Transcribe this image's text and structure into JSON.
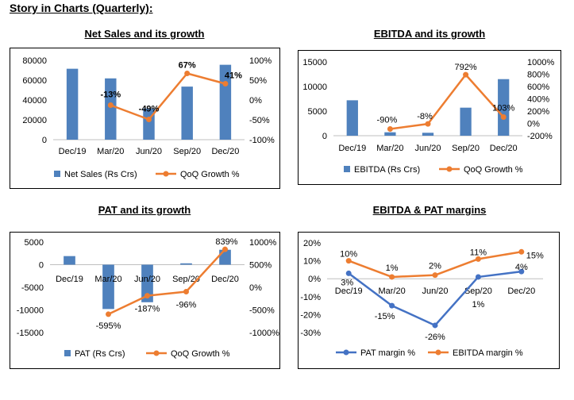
{
  "heading": "Story in Charts (Quarterly):",
  "chart_data": [
    {
      "id": "net_sales",
      "type": "bar+line",
      "title": "Net Sales and its growth",
      "categories": [
        "Dec/19",
        "Mar/20",
        "Jun/20",
        "Sep/20",
        "Dec/20"
      ],
      "y_left": {
        "min": 0,
        "max": 80000,
        "ticks": [
          0,
          20000,
          40000,
          60000,
          80000
        ],
        "tick_labels": [
          "0",
          "20000",
          "40000",
          "60000",
          "80000"
        ]
      },
      "y_right": {
        "min": -100,
        "max": 100,
        "ticks": [
          -100,
          -50,
          0,
          50,
          100
        ],
        "tick_labels": [
          "-100%",
          "-50%",
          "0%",
          "50%",
          "100%"
        ]
      },
      "series": [
        {
          "name": "Net Sales (Rs Crs)",
          "kind": "bar",
          "axis": "left",
          "color": "#4F81BD",
          "values": [
            71500,
            61800,
            31500,
            53500,
            75500
          ]
        },
        {
          "name": "QoQ Growth %",
          "kind": "line",
          "axis": "right",
          "color": "#ED7D31",
          "values": [
            null,
            -13,
            -49,
            67,
            41
          ],
          "labels": [
            "",
            "-13%",
            "-49%",
            "67%",
            "41%"
          ],
          "bold_labels": true
        }
      ],
      "legend": "bottom"
    },
    {
      "id": "ebitda",
      "type": "bar+line",
      "title": "EBITDA and its growth",
      "categories": [
        "Dec/19",
        "Mar/20",
        "Jun/20",
        "Sep/20",
        "Dec/20"
      ],
      "y_left": {
        "min": 0,
        "max": 15000,
        "ticks": [
          0,
          5000,
          10000,
          15000
        ],
        "tick_labels": [
          "0",
          "5000",
          "10000",
          "15000"
        ]
      },
      "y_right": {
        "min": -200,
        "max": 1000,
        "ticks": [
          -200,
          0,
          200,
          400,
          600,
          800,
          1000
        ],
        "tick_labels": [
          "-200%",
          "0%",
          "200%",
          "400%",
          "600%",
          "800%",
          "1000%"
        ]
      },
      "series": [
        {
          "name": "EBITDA (Rs Crs)",
          "kind": "bar",
          "axis": "left",
          "color": "#4F81BD",
          "values": [
            7200,
            700,
            600,
            5700,
            11500
          ]
        },
        {
          "name": "QoQ Growth %",
          "kind": "line",
          "axis": "right",
          "color": "#ED7D31",
          "values": [
            null,
            -90,
            -8,
            792,
            103
          ],
          "labels": [
            "",
            "-90%",
            "-8%",
            "792%",
            "103%"
          ],
          "bold_labels": false
        }
      ],
      "legend": "bottom"
    },
    {
      "id": "pat",
      "type": "bar+line",
      "title": "PAT and its growth",
      "categories": [
        "Dec/19",
        "Mar/20",
        "Jun/20",
        "Sep/20",
        "Dec/20"
      ],
      "y_left": {
        "min": -15000,
        "max": 5000,
        "ticks": [
          -15000,
          -10000,
          -5000,
          0,
          5000
        ],
        "tick_labels": [
          "-15000",
          "-10000",
          "-5000",
          "0",
          "5000"
        ]
      },
      "y_right": {
        "min": -1000,
        "max": 1000,
        "ticks": [
          -1000,
          -500,
          0,
          500,
          1000
        ],
        "tick_labels": [
          "-1000%",
          "-500%",
          "0%",
          "500%",
          "1000%"
        ]
      },
      "series": [
        {
          "name": "PAT (Rs Crs)",
          "kind": "bar",
          "axis": "left",
          "color": "#4F81BD",
          "values": [
            1900,
            -9800,
            -8300,
            300,
            3300
          ]
        },
        {
          "name": "QoQ Growth %",
          "kind": "line",
          "axis": "right",
          "color": "#ED7D31",
          "values": [
            null,
            -595,
            -187,
            -96,
            839
          ],
          "labels": [
            "",
            "-595%",
            "-187%",
            "-96%",
            "839%"
          ],
          "bold_labels": false
        }
      ],
      "legend": "bottom"
    },
    {
      "id": "margins",
      "type": "line",
      "title": "EBITDA & PAT margins",
      "categories": [
        "Dec/19",
        "Mar/20",
        "Jun/20",
        "Sep/20",
        "Dec/20"
      ],
      "y_left": {
        "min": -30,
        "max": 20,
        "ticks": [
          -30,
          -20,
          -10,
          0,
          10,
          20
        ],
        "tick_labels": [
          "-30%",
          "-20%",
          "-10%",
          "0%",
          "10%",
          "20%"
        ]
      },
      "series": [
        {
          "name": "PAT margin %",
          "kind": "line",
          "axis": "left",
          "color": "#4472C4",
          "values": [
            3,
            -15,
            -26,
            1,
            4
          ],
          "labels": [
            "3%",
            "-15%",
            "-26%",
            "1%",
            "4%"
          ]
        },
        {
          "name": "EBITDA margin %",
          "kind": "line",
          "axis": "left",
          "color": "#ED7D31",
          "values": [
            10,
            1,
            2,
            11,
            15
          ],
          "labels": [
            "10%",
            "1%",
            "2%",
            "11%",
            "15%"
          ]
        }
      ],
      "legend": "bottom"
    }
  ]
}
